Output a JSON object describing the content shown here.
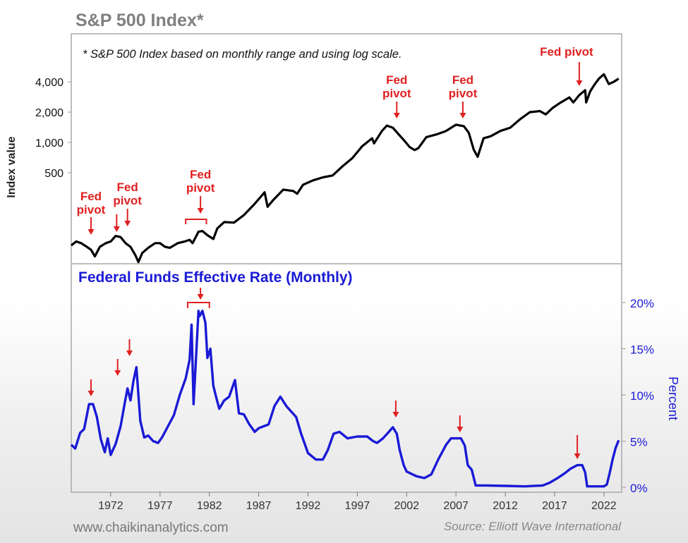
{
  "title": "S&P 500 Index*",
  "footnote": "* S&P 500 Index based on monthly range and using log scale.",
  "footer_left": "www.chaikinanalytics.com",
  "footer_right": "Source: Elliott Wave International",
  "colors": {
    "sp500_line": "#000000",
    "fed_line": "#1a1ad6",
    "annotation": "#e02020",
    "title": "#808080",
    "frame": "#a8a8a8"
  },
  "chart_data": [
    {
      "type": "line",
      "title": "S&P 500 Index*",
      "ylabel": "Index value",
      "yscale": "log",
      "yticks": [
        500,
        1000,
        2000,
        4000
      ],
      "ytick_labels": [
        "500",
        "1,000",
        "2,000",
        "4,000"
      ],
      "ylim": [
        60,
        6500
      ],
      "xlim": [
        1968.0,
        2023.8
      ],
      "series": [
        {
          "x": [
            1968.0,
            1968.5,
            1969.0,
            1969.5,
            1970.0,
            1970.4,
            1970.9,
            1971.5,
            1972.0,
            1972.5,
            1973.0,
            1973.5,
            1974.0,
            1974.5,
            1974.8,
            1975.2,
            1975.8,
            1976.5,
            1977.0,
            1977.5,
            1978.0,
            1978.8,
            1979.5,
            1980.0,
            1980.3,
            1980.9,
            1981.3,
            1981.8,
            1982.4,
            1982.8,
            1983.5,
            1984.5,
            1985.5,
            1986.5,
            1987.6,
            1987.9,
            1988.5,
            1989.5,
            1990.5,
            1990.9,
            1991.5,
            1992.5,
            1993.5,
            1994.5,
            1995.5,
            1996.5,
            1997.5,
            1998.5,
            1998.7,
            1999.5,
            2000.0,
            2000.6,
            2001.2,
            2001.7,
            2002.3,
            2002.8,
            2003.2,
            2004.0,
            2005.0,
            2006.0,
            2007.0,
            2007.8,
            2008.3,
            2008.8,
            2009.2,
            2009.8,
            2010.5,
            2011.5,
            2012.5,
            2013.5,
            2014.5,
            2015.5,
            2016.1,
            2016.8,
            2017.5,
            2018.5,
            2018.9,
            2019.5,
            2020.1,
            2020.2,
            2020.6,
            2021.0,
            2021.5,
            2022.0,
            2022.5,
            2023.0,
            2023.5
          ],
          "y": [
            95,
            104,
            100,
            93,
            86,
            74,
            92,
            100,
            104,
            118,
            115,
            100,
            92,
            76,
            65,
            80,
            90,
            100,
            100,
            92,
            90,
            100,
            104,
            108,
            100,
            130,
            132,
            120,
            110,
            140,
            162,
            160,
            190,
            240,
            320,
            230,
            270,
            340,
            330,
            310,
            380,
            420,
            450,
            470,
            580,
            700,
            920,
            1100,
            980,
            1300,
            1470,
            1400,
            1200,
            1060,
            900,
            840,
            880,
            1130,
            1200,
            1300,
            1500,
            1450,
            1250,
            850,
            720,
            1100,
            1150,
            1300,
            1400,
            1700,
            2000,
            2050,
            1900,
            2200,
            2450,
            2800,
            2500,
            2950,
            3300,
            2500,
            3200,
            3700,
            4300,
            4750,
            3800,
            4000,
            4300
          ]
        }
      ],
      "annotations": [
        {
          "label": "Fed pivot",
          "x": 1970.0
        },
        {
          "label": "Fed pivot",
          "x": 1973.7
        },
        {
          "label": "Fed pivot",
          "x": 1981.1
        },
        {
          "label": "Fed pivot",
          "x": 2001.0
        },
        {
          "label": "Fed pivot",
          "x": 2007.7
        },
        {
          "label": "Fed pivot",
          "x": 2019.5
        }
      ],
      "extra_arrows_x": [
        1972.6
      ]
    },
    {
      "type": "line",
      "title": "Federal Funds Effective Rate (Monthly)",
      "ylabel": "Percent",
      "yticks": [
        0,
        5,
        10,
        15,
        20
      ],
      "ytick_labels": [
        "0%",
        "5%",
        "10%",
        "15%",
        "20%"
      ],
      "ylim": [
        0,
        22
      ],
      "xlim": [
        1968.0,
        2023.8
      ],
      "xticks": [
        1972,
        1977,
        1982,
        1987,
        1992,
        1997,
        2002,
        2007,
        2012,
        2017,
        2022
      ],
      "xtick_labels": [
        "1972",
        "1977",
        "1982",
        "1987",
        "1992",
        "1997",
        "2002",
        "2007",
        "2012",
        "2017",
        "2022"
      ],
      "series": [
        {
          "name": "Federal Funds Effective Rate",
          "x": [
            1968.0,
            1968.4,
            1968.9,
            1969.3,
            1969.8,
            1970.2,
            1970.6,
            1971.0,
            1971.4,
            1971.7,
            1972.0,
            1972.5,
            1973.0,
            1973.4,
            1973.7,
            1974.0,
            1974.3,
            1974.6,
            1975.0,
            1975.4,
            1975.8,
            1976.3,
            1976.8,
            1977.2,
            1977.8,
            1978.4,
            1979.0,
            1979.6,
            1980.0,
            1980.2,
            1980.4,
            1980.6,
            1980.9,
            1981.0,
            1981.3,
            1981.6,
            1981.8,
            1982.1,
            1982.4,
            1982.7,
            1983.0,
            1983.5,
            1984.0,
            1984.6,
            1985.0,
            1985.5,
            1986.0,
            1986.6,
            1987.0,
            1987.5,
            1988.0,
            1988.6,
            1989.2,
            1989.8,
            1990.3,
            1990.8,
            1991.3,
            1992.0,
            1992.8,
            1993.5,
            1994.0,
            1994.6,
            1995.2,
            1996.0,
            1997.0,
            1998.0,
            1998.6,
            1999.0,
            1999.6,
            2000.2,
            2000.6,
            2001.0,
            2001.3,
            2001.7,
            2002.0,
            2003.0,
            2003.8,
            2004.5,
            2005.2,
            2006.0,
            2006.5,
            2007.0,
            2007.5,
            2007.9,
            2008.2,
            2008.6,
            2009.0,
            2010.0,
            2012.0,
            2014.0,
            2015.8,
            2016.5,
            2017.3,
            2018.0,
            2018.6,
            2019.3,
            2019.8,
            2020.1,
            2020.3,
            2021.0,
            2022.0,
            2022.3,
            2022.6,
            2022.9,
            2023.2,
            2023.5
          ],
          "y": [
            4.6,
            4.2,
            5.9,
            6.3,
            9.0,
            9.0,
            7.6,
            5.2,
            3.8,
            5.3,
            3.5,
            4.7,
            6.6,
            9.0,
            10.7,
            9.4,
            11.5,
            13.0,
            7.2,
            5.4,
            5.6,
            5.0,
            4.8,
            5.4,
            6.6,
            7.8,
            10.0,
            11.8,
            13.8,
            17.6,
            9.0,
            13.0,
            19.1,
            18.5,
            19.1,
            17.8,
            14.0,
            15.0,
            11.0,
            9.7,
            8.5,
            9.4,
            9.8,
            11.6,
            8.0,
            7.9,
            6.9,
            6.0,
            6.4,
            6.6,
            6.8,
            8.8,
            9.8,
            8.8,
            8.2,
            7.6,
            5.8,
            3.7,
            3.0,
            3.0,
            4.0,
            5.8,
            6.0,
            5.3,
            5.5,
            5.5,
            5.0,
            4.8,
            5.3,
            6.0,
            6.5,
            5.8,
            4.0,
            2.4,
            1.7,
            1.2,
            1.0,
            1.4,
            3.0,
            4.6,
            5.3,
            5.3,
            5.3,
            4.5,
            2.4,
            1.9,
            0.2,
            0.2,
            0.15,
            0.1,
            0.2,
            0.5,
            1.0,
            1.5,
            2.0,
            2.4,
            2.4,
            1.6,
            0.1,
            0.1,
            0.1,
            0.3,
            1.6,
            3.1,
            4.3,
            5.1
          ]
        }
      ],
      "annotation_arrows_x": [
        1970.0,
        1972.7,
        1973.9,
        1981.1,
        2000.9,
        2007.4,
        2019.3
      ]
    }
  ]
}
